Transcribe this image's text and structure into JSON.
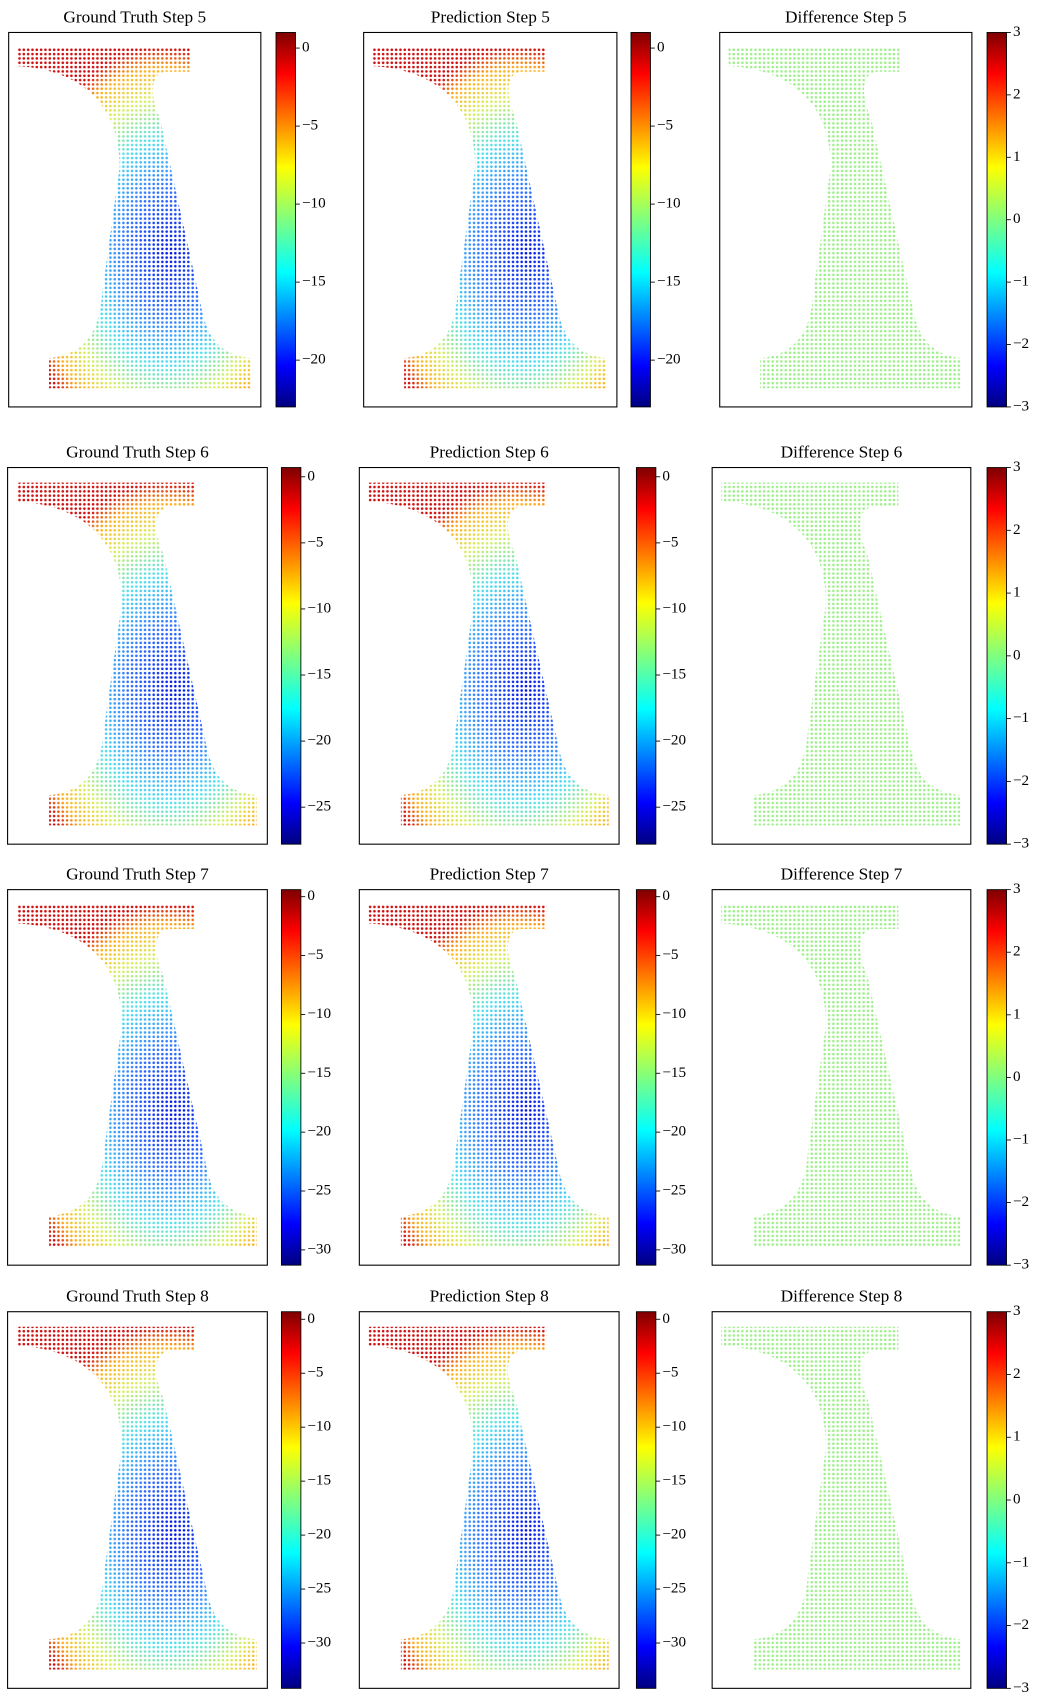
{
  "chart_data": [
    {
      "type": "scatter",
      "title": "Ground Truth Step 5",
      "colormap": "jet",
      "clim": [
        -23,
        1
      ],
      "cticks": [
        0,
        {
          "value": -5,
          "label": "−5"
        },
        {
          "value": -10,
          "label": "−10"
        },
        {
          "value": -15,
          "label": "−15"
        },
        {
          "value": -20,
          "label": "−20"
        }
      ]
    },
    {
      "type": "scatter",
      "title": "Prediction Step 5",
      "colormap": "jet",
      "clim": [
        -23,
        1
      ],
      "cticks": [
        0,
        {
          "value": -5,
          "label": "−5"
        },
        {
          "value": -10,
          "label": "−10"
        },
        {
          "value": -15,
          "label": "−15"
        },
        {
          "value": -20,
          "label": "−20"
        }
      ]
    },
    {
      "type": "scatter",
      "title": "Difference Step 5",
      "colormap": "jet",
      "clim": [
        -3,
        3
      ],
      "cticks": [
        3,
        2,
        1,
        0,
        {
          "value": -1,
          "label": "−1"
        },
        {
          "value": -2,
          "label": "−2"
        },
        {
          "value": -3,
          "label": "−3"
        }
      ]
    },
    {
      "type": "scatter",
      "title": "Ground Truth Step 6",
      "colormap": "jet",
      "clim": [
        -27.8,
        0.7
      ],
      "cticks": [
        0,
        {
          "value": -5,
          "label": "−5"
        },
        {
          "value": -10,
          "label": "−10"
        },
        {
          "value": -15,
          "label": "−15"
        },
        {
          "value": -20,
          "label": "−20"
        },
        {
          "value": -25,
          "label": "−25"
        }
      ]
    },
    {
      "type": "scatter",
      "title": "Prediction Step 6",
      "colormap": "jet",
      "clim": [
        -27.8,
        0.7
      ],
      "cticks": [
        0,
        {
          "value": -5,
          "label": "−5"
        },
        {
          "value": -10,
          "label": "−10"
        },
        {
          "value": -15,
          "label": "−15"
        },
        {
          "value": -20,
          "label": "−20"
        },
        {
          "value": -25,
          "label": "−25"
        }
      ]
    },
    {
      "type": "scatter",
      "title": "Difference Step 6",
      "colormap": "jet",
      "clim": [
        -3,
        3
      ],
      "cticks": [
        3,
        2,
        1,
        0,
        {
          "value": -1,
          "label": "−1"
        },
        {
          "value": -2,
          "label": "−2"
        },
        {
          "value": -3,
          "label": "−3"
        }
      ]
    },
    {
      "type": "scatter",
      "title": "Ground Truth Step 7",
      "colormap": "jet",
      "clim": [
        -31.3,
        0.6
      ],
      "cticks": [
        0,
        {
          "value": -5,
          "label": "−5"
        },
        {
          "value": -10,
          "label": "−10"
        },
        {
          "value": -15,
          "label": "−15"
        },
        {
          "value": -20,
          "label": "−20"
        },
        {
          "value": -25,
          "label": "−25"
        },
        {
          "value": -30,
          "label": "−30"
        }
      ]
    },
    {
      "type": "scatter",
      "title": "Prediction Step 7",
      "colormap": "jet",
      "clim": [
        -31.3,
        0.6
      ],
      "cticks": [
        0,
        {
          "value": -5,
          "label": "−5"
        },
        {
          "value": -10,
          "label": "−10"
        },
        {
          "value": -15,
          "label": "−15"
        },
        {
          "value": -20,
          "label": "−20"
        },
        {
          "value": -25,
          "label": "−25"
        },
        {
          "value": -30,
          "label": "−30"
        }
      ]
    },
    {
      "type": "scatter",
      "title": "Difference Step 7",
      "colormap": "jet",
      "clim": [
        -3,
        3
      ],
      "cticks": [
        3,
        2,
        1,
        0,
        {
          "value": -1,
          "label": "−1"
        },
        {
          "value": -2,
          "label": "−2"
        },
        {
          "value": -3,
          "label": "−3"
        }
      ]
    },
    {
      "type": "scatter",
      "title": "Ground Truth Step 8",
      "colormap": "jet",
      "clim": [
        -34.2,
        0.7
      ],
      "cticks": [
        0,
        {
          "value": -5,
          "label": "−5"
        },
        {
          "value": -10,
          "label": "−10"
        },
        {
          "value": -15,
          "label": "−15"
        },
        {
          "value": -20,
          "label": "−20"
        },
        {
          "value": -25,
          "label": "−25"
        },
        {
          "value": -30,
          "label": "−30"
        }
      ]
    },
    {
      "type": "scatter",
      "title": "Prediction Step 8",
      "colormap": "jet",
      "clim": [
        -34.2,
        0.7
      ],
      "cticks": [
        0,
        {
          "value": -5,
          "label": "−5"
        },
        {
          "value": -10,
          "label": "−10"
        },
        {
          "value": -15,
          "label": "−15"
        },
        {
          "value": -20,
          "label": "−20"
        },
        {
          "value": -25,
          "label": "−25"
        },
        {
          "value": -30,
          "label": "−30"
        }
      ]
    },
    {
      "type": "scatter",
      "title": "Difference Step 8",
      "colormap": "jet",
      "clim": [
        -3,
        3
      ],
      "cticks": [
        3,
        2,
        1,
        0,
        {
          "value": -1,
          "label": "−1"
        },
        {
          "value": -2,
          "label": "−2"
        },
        {
          "value": -3,
          "label": "−3"
        }
      ]
    }
  ]
}
